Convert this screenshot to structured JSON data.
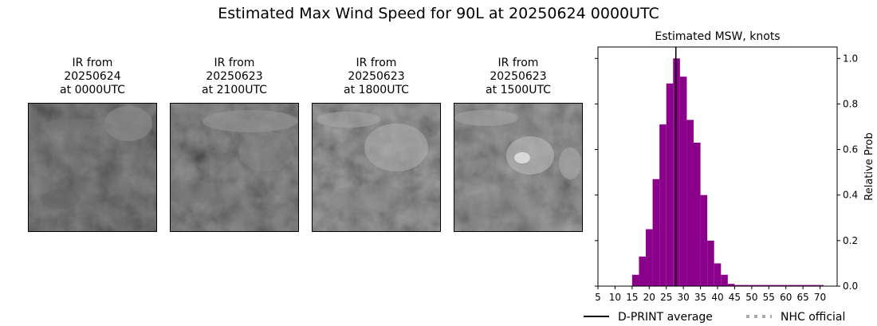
{
  "suptitle": "Estimated Max Wind Speed for 90L at 20250624 0000UTC",
  "ir_panels": [
    {
      "line1": "IR from",
      "line2": "20250624",
      "line3": "at 0000UTC"
    },
    {
      "line1": "IR from",
      "line2": "20250623",
      "line3": "at 2100UTC"
    },
    {
      "line1": "IR from",
      "line2": "20250623",
      "line3": "at 1800UTC"
    },
    {
      "line1": "IR from",
      "line2": "20250623",
      "line3": "at 1500UTC"
    }
  ],
  "chart_data": {
    "type": "bar",
    "title": "Estimated MSW, knots",
    "ylabel": "Relative Prob",
    "xlim": [
      5,
      75
    ],
    "ylim": [
      0,
      1.05
    ],
    "xticks": [
      5,
      10,
      15,
      20,
      25,
      30,
      35,
      40,
      45,
      50,
      55,
      60,
      65,
      70
    ],
    "yticks": [
      0.0,
      0.2,
      0.4,
      0.6,
      0.8,
      1.0
    ],
    "bin_width": 2,
    "bins": [
      15,
      17,
      19,
      21,
      23,
      25,
      27,
      29,
      31,
      33,
      35,
      37,
      39,
      41,
      43,
      45,
      47,
      49,
      51,
      53,
      55,
      57,
      59,
      61,
      63,
      65,
      67,
      69
    ],
    "values": [
      0.05,
      0.13,
      0.25,
      0.47,
      0.71,
      0.89,
      1.0,
      0.92,
      0.73,
      0.63,
      0.4,
      0.2,
      0.1,
      0.05,
      0.01,
      0.005,
      0.005,
      0.005,
      0.005,
      0.005,
      0.005,
      0.005,
      0.005,
      0.005,
      0.005,
      0.005,
      0.005,
      0.005
    ],
    "bar_color": "#8b008b",
    "dprint_average": 27.8,
    "legend": [
      {
        "label": "D-PRINT average",
        "color": "#000000",
        "style": "solid"
      },
      {
        "label": "NHC official",
        "color": "#aaaaaa",
        "style": "dotted"
      }
    ],
    "legend_location": "below"
  }
}
